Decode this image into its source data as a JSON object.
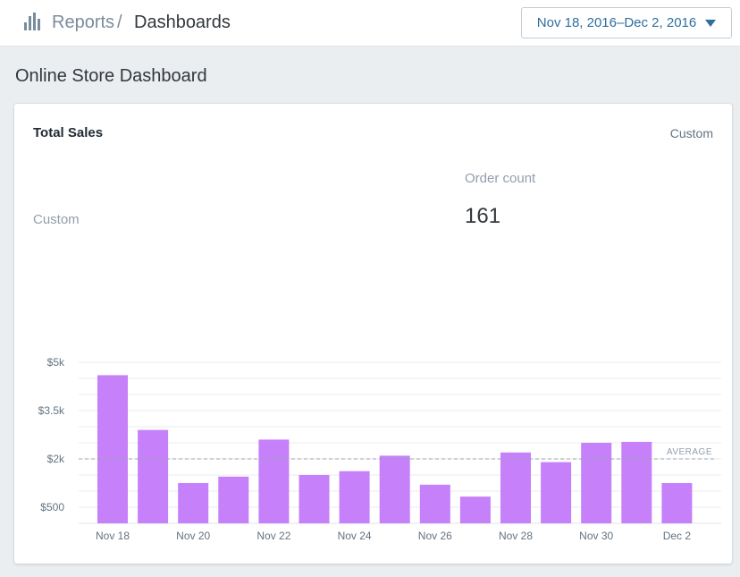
{
  "header": {
    "breadcrumb_parent": "Reports",
    "breadcrumb_separator": "/",
    "breadcrumb_current": "Dashboards",
    "date_range": "Nov 18, 2016–Dec 2, 2016",
    "icon": "bar-chart-icon"
  },
  "page": {
    "title": "Online Store Dashboard"
  },
  "card": {
    "title": "Total Sales",
    "right_label": "Custom",
    "left_label": "Custom",
    "order_count_label": "Order count",
    "order_count_value": "161"
  },
  "colors": {
    "bar": "#c580fa",
    "grid": "#e8ebee",
    "average_line": "#98a4ae",
    "accent": "#2e6f9e"
  },
  "chart_data": {
    "type": "bar",
    "categories": [
      "Nov 18",
      "Nov 19",
      "Nov 20",
      "Nov 21",
      "Nov 22",
      "Nov 23",
      "Nov 24",
      "Nov 25",
      "Nov 26",
      "Nov 27",
      "Nov 28",
      "Nov 29",
      "Nov 30",
      "Dec 1",
      "Dec 2"
    ],
    "values": [
      4600,
      2900,
      1250,
      1450,
      2600,
      1500,
      1620,
      2100,
      1200,
      830,
      2200,
      1900,
      2500,
      2530,
      1250
    ],
    "x_tick_labels": [
      "Nov 18",
      "Nov 20",
      "Nov 22",
      "Nov 24",
      "Nov 26",
      "Nov 28",
      "Nov 30",
      "Dec 2"
    ],
    "y_ticks": [
      {
        "value": 500,
        "label": "$500"
      },
      {
        "value": 2000,
        "label": "$2k"
      },
      {
        "value": 3500,
        "label": "$3.5k"
      },
      {
        "value": 5000,
        "label": "$5k"
      }
    ],
    "ylim": [
      0,
      5000
    ],
    "average": {
      "value": 2000,
      "label": "AVERAGE"
    },
    "grid": true
  }
}
